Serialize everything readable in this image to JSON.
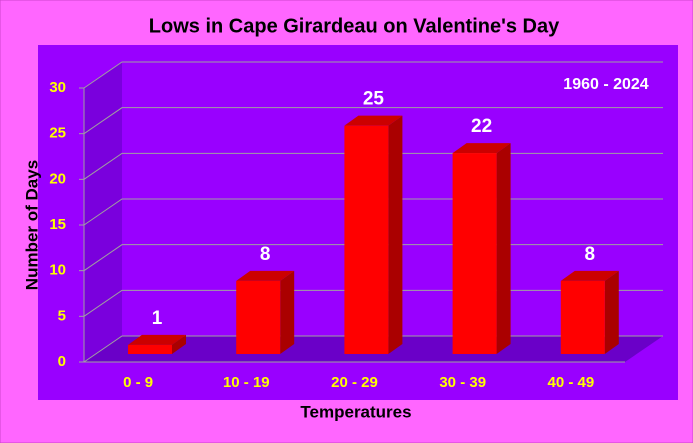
{
  "chart_data": {
    "type": "bar3d",
    "title": "Lows in Cape Girardeau on Valentine's Day",
    "annotation": "1960 - 2024",
    "x_label": "Temperatures",
    "y_label": "Number of Days",
    "categories": [
      "0 - 9",
      "10 - 19",
      "20 - 29",
      "30 - 39",
      "40 - 49"
    ],
    "values": [
      1,
      8,
      25,
      22,
      8
    ],
    "color": "#ff0000",
    "ylim": [
      0,
      30
    ],
    "yticks": [
      0,
      5,
      10,
      15,
      20,
      25,
      30
    ],
    "grid": true
  }
}
